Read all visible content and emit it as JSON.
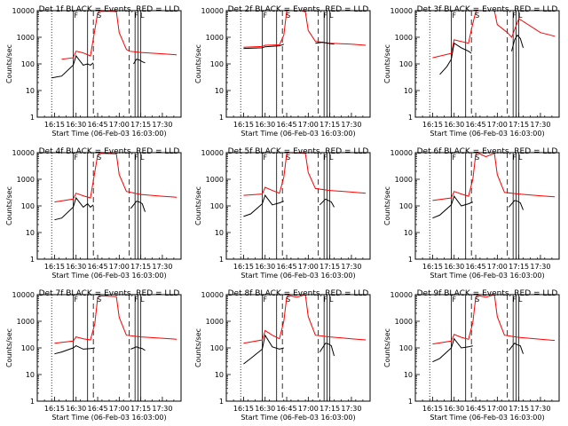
{
  "chart_data": {
    "type": "line",
    "x_start": "16:03:00",
    "x_range": [
      "16:03:00",
      "17:43:00"
    ],
    "x_ticks": [
      "16:15",
      "16:30",
      "16:45",
      "17:00",
      "17:15",
      "17:30"
    ],
    "y_scale": "log",
    "y_range": [
      1,
      10000
    ],
    "y_ticks": [
      "1",
      "10",
      "100",
      "1000",
      "10000"
    ],
    "xlabel": "Start Time (06-Feb-03 16:03:00)",
    "ylabel": "Counts/sec",
    "markers": {
      "dotted": [
        "16:13"
      ],
      "solid": [
        "16:28",
        "16:38",
        "17:11",
        "17:13",
        "17:15"
      ],
      "dashed": [
        "16:42",
        "17:07"
      ],
      "letters": [
        {
          "text": "F",
          "time": "16:30"
        },
        {
          "text": "S",
          "time": "16:46"
        },
        {
          "text": "F",
          "time": "17:12"
        },
        {
          "text": "L",
          "time": "17:16"
        }
      ]
    },
    "panels": [
      {
        "title": "Det 1f BLACK = Events, RED = LLD",
        "series": [
          {
            "color": "#ff0000",
            "x": [
              "16:20",
              "16:28",
              "16:30",
              "16:35",
              "16:40",
              "16:42",
              "16:45",
              "16:46",
              "16:55",
              "16:58",
              "17:00",
              "17:05",
              "17:07",
              "17:15",
              "17:30",
              "17:40"
            ],
            "y": [
              150,
              170,
              300,
              260,
              200,
              900,
              8000,
              9500,
              9500,
              9200,
              1500,
              350,
              300,
              270,
              240,
              220
            ]
          },
          {
            "color": "#000000",
            "x": [
              "16:13",
              "16:20",
              "16:28",
              "16:30",
              "16:35",
              "16:38",
              "16:40",
              "16:42"
            ],
            "y": [
              30,
              35,
              90,
              200,
              90,
              100,
              90,
              110
            ]
          },
          {
            "color": "#000000",
            "x": [
              "17:10",
              "17:12",
              "17:14",
              "17:16",
              "17:18"
            ],
            "y": [
              100,
              150,
              140,
              120,
              110
            ]
          }
        ]
      },
      {
        "title": "Det 2f BLACK = Events, RED = LLD",
        "series": [
          {
            "color": "#ff0000",
            "x": [
              "16:15",
              "16:28",
              "16:30",
              "16:40",
              "16:43",
              "16:45",
              "16:46",
              "16:55",
              "16:58",
              "17:00",
              "17:05",
              "17:15",
              "17:30",
              "17:40"
            ],
            "y": [
              420,
              450,
              500,
              520,
              1200,
              9500,
              10000,
              10000,
              9000,
              1800,
              700,
              600,
              550,
              500
            ]
          },
          {
            "color": "#000000",
            "x": [
              "16:15",
              "16:28",
              "16:30",
              "16:40",
              "16:43"
            ],
            "y": [
              380,
              400,
              440,
              480,
              550
            ]
          },
          {
            "color": "#000000",
            "x": [
              "17:05",
              "17:10",
              "17:15",
              "17:18"
            ],
            "y": [
              600,
              650,
              580,
              550
            ]
          }
        ]
      },
      {
        "title": "Det 3f BLACK = Events, RED = LLD",
        "series": [
          {
            "color": "#ff0000",
            "x": [
              "16:15",
              "16:28",
              "16:30",
              "16:40",
              "16:42",
              "16:45",
              "16:46",
              "16:58",
              "17:00",
              "17:07",
              "17:10",
              "17:15",
              "17:30",
              "17:40"
            ],
            "y": [
              170,
              250,
              800,
              600,
              2000,
              9000,
              10000,
              10000,
              3000,
              1500,
              1000,
              5000,
              1500,
              1100
            ]
          },
          {
            "color": "#000000",
            "x": [
              "16:20",
              "16:25",
              "16:28",
              "16:30",
              "16:35",
              "16:40",
              "16:42"
            ],
            "y": [
              40,
              80,
              150,
              600,
              400,
              300,
              250
            ]
          },
          {
            "color": "#000000",
            "x": [
              "17:10",
              "17:12",
              "17:14",
              "17:16",
              "17:18"
            ],
            "y": [
              300,
              800,
              1200,
              900,
              400
            ]
          }
        ]
      },
      {
        "title": "Det 4f BLACK = Events, RED = LLD",
        "series": [
          {
            "color": "#ff0000",
            "x": [
              "16:15",
              "16:28",
              "16:30",
              "16:35",
              "16:40",
              "16:42",
              "16:45",
              "16:46",
              "16:58",
              "17:00",
              "17:05",
              "17:15",
              "17:30",
              "17:40"
            ],
            "y": [
              140,
              180,
              300,
              240,
              200,
              900,
              8000,
              9500,
              9000,
              1500,
              350,
              270,
              230,
              210
            ]
          },
          {
            "color": "#000000",
            "x": [
              "16:15",
              "16:20",
              "16:28",
              "16:30",
              "16:35",
              "16:38",
              "16:40",
              "16:42"
            ],
            "y": [
              30,
              35,
              90,
              200,
              90,
              120,
              90,
              110
            ]
          },
          {
            "color": "#000000",
            "x": [
              "17:08",
              "17:12",
              "17:14",
              "17:16",
              "17:18"
            ],
            "y": [
              80,
              150,
              140,
              120,
              60
            ]
          }
        ]
      },
      {
        "title": "Det 5f BLACK = Events, RED = LLD",
        "series": [
          {
            "color": "#ff0000",
            "x": [
              "16:15",
              "16:28",
              "16:30",
              "16:35",
              "16:40",
              "16:43",
              "16:45",
              "16:46",
              "16:58",
              "17:00",
              "17:05",
              "17:15",
              "17:30",
              "17:40"
            ],
            "y": [
              250,
              280,
              500,
              380,
              300,
              1200,
              9000,
              10000,
              9500,
              1800,
              450,
              380,
              330,
              300
            ]
          },
          {
            "color": "#000000",
            "x": [
              "16:15",
              "16:20",
              "16:28",
              "16:30",
              "16:35",
              "16:40",
              "16:43"
            ],
            "y": [
              40,
              50,
              120,
              250,
              110,
              130,
              150
            ]
          },
          {
            "color": "#000000",
            "x": [
              "17:08",
              "17:12",
              "17:14",
              "17:16",
              "17:18"
            ],
            "y": [
              110,
              180,
              160,
              140,
              90
            ]
          }
        ]
      },
      {
        "title": "Det 6f BLACK = Events, RED = LLD",
        "series": [
          {
            "color": "#ff0000",
            "x": [
              "16:15",
              "16:28",
              "16:30",
              "16:35",
              "16:40",
              "16:43",
              "16:45",
              "16:46",
              "16:52",
              "16:58",
              "17:00",
              "17:05",
              "17:15",
              "17:30",
              "17:40"
            ],
            "y": [
              160,
              200,
              350,
              280,
              230,
              1000,
              8500,
              10000,
              7000,
              9500,
              1500,
              320,
              280,
              240,
              220
            ]
          },
          {
            "color": "#000000",
            "x": [
              "16:15",
              "16:20",
              "16:28",
              "16:30",
              "16:35",
              "16:40",
              "16:43"
            ],
            "y": [
              35,
              45,
              110,
              230,
              100,
              120,
              140
            ]
          },
          {
            "color": "#000000",
            "x": [
              "17:08",
              "17:12",
              "17:14",
              "17:16",
              "17:18"
            ],
            "y": [
              90,
              160,
              150,
              130,
              70
            ]
          }
        ]
      },
      {
        "title": "Det 7f BLACK = Events, RED = LLD",
        "series": [
          {
            "color": "#ff0000",
            "x": [
              "16:15",
              "16:28",
              "16:30",
              "16:35",
              "16:40",
              "16:43",
              "16:45",
              "16:46",
              "16:58",
              "17:00",
              "17:05",
              "17:15",
              "17:30",
              "17:40"
            ],
            "y": [
              150,
              180,
              260,
              220,
              200,
              800,
              7500,
              9000,
              8500,
              1400,
              300,
              260,
              230,
              210
            ]
          },
          {
            "color": "#000000",
            "x": [
              "16:15",
              "16:20",
              "16:28",
              "16:30",
              "16:35",
              "16:40",
              "16:43"
            ],
            "y": [
              60,
              70,
              100,
              120,
              90,
              95,
              100
            ]
          },
          {
            "color": "#000000",
            "x": [
              "17:08",
              "17:12",
              "17:14",
              "17:16",
              "17:18"
            ],
            "y": [
              90,
              110,
              100,
              95,
              80
            ]
          }
        ]
      },
      {
        "title": "Det 8f BLACK = Events, RED = LLD",
        "series": [
          {
            "color": "#ff0000",
            "x": [
              "16:15",
              "16:28",
              "16:30",
              "16:35",
              "16:40",
              "16:43",
              "16:45",
              "16:46",
              "16:52",
              "16:58",
              "17:00",
              "17:05",
              "17:15",
              "17:30",
              "17:40"
            ],
            "y": [
              150,
              200,
              450,
              300,
              220,
              1000,
              8000,
              9500,
              8000,
              10000,
              1500,
              300,
              260,
              220,
              200
            ]
          },
          {
            "color": "#000000",
            "x": [
              "16:15",
              "16:20",
              "16:28",
              "16:30",
              "16:35",
              "16:40",
              "16:43"
            ],
            "y": [
              25,
              40,
              90,
              300,
              110,
              90,
              100
            ]
          },
          {
            "color": "#000000",
            "x": [
              "17:08",
              "17:12",
              "17:14",
              "17:16",
              "17:18"
            ],
            "y": [
              70,
              150,
              140,
              120,
              50
            ]
          }
        ]
      },
      {
        "title": "Det 9f BLACK = Events, RED = LLD",
        "series": [
          {
            "color": "#ff0000",
            "x": [
              "16:15",
              "16:28",
              "16:30",
              "16:35",
              "16:40",
              "16:43",
              "16:45",
              "16:46",
              "16:52",
              "16:58",
              "17:00",
              "17:05",
              "17:15",
              "17:30",
              "17:40"
            ],
            "y": [
              140,
              180,
              320,
              250,
              210,
              900,
              8000,
              9500,
              8000,
              10000,
              1500,
              300,
              250,
              210,
              190
            ]
          },
          {
            "color": "#000000",
            "x": [
              "16:15",
              "16:20",
              "16:28",
              "16:30",
              "16:35",
              "16:40",
              "16:43"
            ],
            "y": [
              30,
              40,
              100,
              220,
              100,
              110,
              120
            ]
          },
          {
            "color": "#000000",
            "x": [
              "17:08",
              "17:12",
              "17:14",
              "17:16",
              "17:18"
            ],
            "y": [
              80,
              150,
              130,
              120,
              60
            ]
          }
        ]
      }
    ]
  }
}
